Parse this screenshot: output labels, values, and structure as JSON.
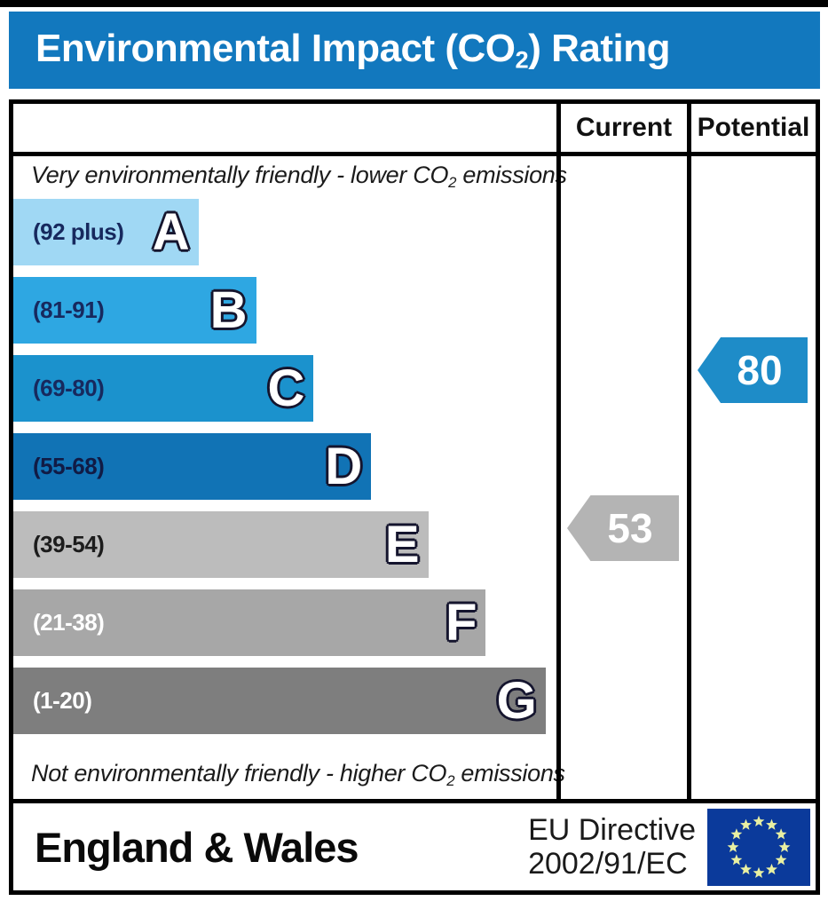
{
  "title": {
    "pre": "Environmental Impact (CO",
    "sub": "2",
    "post": ") Rating"
  },
  "header": {
    "current": "Current",
    "potential": "Potential"
  },
  "chart_data": {
    "type": "bar",
    "orientation": "horizontal",
    "title": "Environmental Impact (CO2) Rating",
    "top_note": {
      "pre": "Very environmentally friendly - lower CO",
      "sub": "2",
      "post": " emissions"
    },
    "bottom_note": {
      "pre": "Not environmentally friendly - higher CO",
      "sub": "2",
      "post": " emissions"
    },
    "bands": [
      {
        "letter": "A",
        "range_label": "(92 plus)",
        "range_min": 92,
        "range_max": 100,
        "color": "#a0d8f4",
        "label_color": "#17295e",
        "width_pct": 34.1
      },
      {
        "letter": "B",
        "range_label": "(81-91)",
        "range_min": 81,
        "range_max": 91,
        "color": "#2ea7e2",
        "label_color": "#17295e",
        "width_pct": 44.7
      },
      {
        "letter": "C",
        "range_label": "(69-80)",
        "range_min": 69,
        "range_max": 80,
        "color": "#1b92cd",
        "label_color": "#17295e",
        "width_pct": 55.3
      },
      {
        "letter": "D",
        "range_label": "(55-68)",
        "range_min": 55,
        "range_max": 68,
        "color": "#1173b5",
        "label_color": "#111b45",
        "width_pct": 65.9
      },
      {
        "letter": "E",
        "range_label": "(39-54)",
        "range_min": 39,
        "range_max": 54,
        "color": "#bcbcbc",
        "label_color": "#1c1c1c",
        "width_pct": 76.4
      },
      {
        "letter": "F",
        "range_label": "(21-38)",
        "range_min": 21,
        "range_max": 38,
        "color": "#a7a7a7",
        "label_color": "#ffffff",
        "width_pct": 87.0
      },
      {
        "letter": "G",
        "range_label": "(1-20)",
        "range_min": 1,
        "range_max": 20,
        "color": "#7e7e7e",
        "label_color": "#ffffff",
        "width_pct": 98.0
      }
    ],
    "markers": {
      "current": {
        "value": 53,
        "band": "E",
        "color": "#b4b4b4"
      },
      "potential": {
        "value": 80,
        "band": "C",
        "color": "#1e8cc8"
      }
    },
    "legend_position": "none",
    "grid": false
  },
  "footer": {
    "region": "England & Wales",
    "directive_line1": "EU Directive",
    "directive_line2": "2002/91/EC",
    "flag_blue": "#0b3a9b",
    "star_color": "#e9f0a2"
  }
}
